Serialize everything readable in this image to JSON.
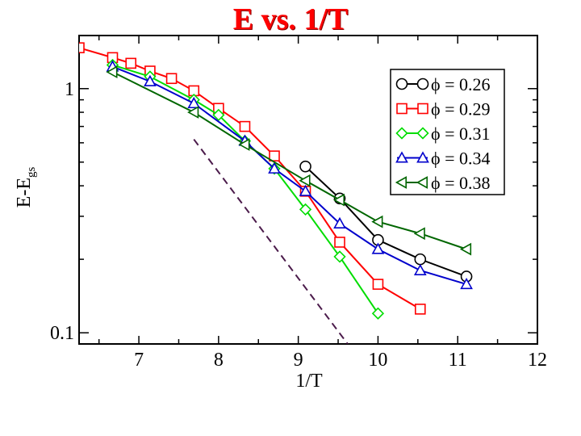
{
  "chart_data": {
    "type": "line",
    "title": "E vs. 1/T",
    "xlabel": "1/T",
    "ylabel": {
      "base": "E-E",
      "sub": "gs"
    },
    "xscale": "linear",
    "yscale": "log",
    "xlim": [
      6.25,
      12
    ],
    "ylim": [
      0.09,
      1.65
    ],
    "xticks": [
      7,
      8,
      9,
      10,
      11,
      12
    ],
    "yticks": [
      {
        "value": 0.1,
        "label": "0.1"
      },
      {
        "value": 1,
        "label": "1"
      }
    ],
    "legend_position": "top-right",
    "series": [
      {
        "name": "ϕ = 0.26",
        "color": "#000000",
        "marker": "circle",
        "x": [
          9.09,
          9.52,
          10.0,
          10.53,
          11.11
        ],
        "y": [
          0.48,
          0.355,
          0.24,
          0.2,
          0.17
        ]
      },
      {
        "name": "ϕ = 0.29",
        "color": "#ff0000",
        "marker": "square",
        "x": [
          6.25,
          6.67,
          6.9,
          7.14,
          7.41,
          7.69,
          8.0,
          8.33,
          8.7,
          9.09,
          9.52,
          10.0,
          10.53
        ],
        "y": [
          1.47,
          1.34,
          1.27,
          1.18,
          1.1,
          0.98,
          0.83,
          0.7,
          0.53,
          0.38,
          0.235,
          0.158,
          0.125
        ]
      },
      {
        "name": "ϕ = 0.31",
        "color": "#00dd00",
        "marker": "diamond",
        "x": [
          6.67,
          7.14,
          7.69,
          8.0,
          8.33,
          8.7,
          9.09,
          9.52,
          10.0
        ],
        "y": [
          1.25,
          1.12,
          0.9,
          0.78,
          0.61,
          0.47,
          0.32,
          0.205,
          0.12
        ]
      },
      {
        "name": "ϕ = 0.34",
        "color": "#0000cc",
        "marker": "triangle-up",
        "x": [
          6.67,
          7.14,
          7.69,
          8.33,
          8.7,
          9.09,
          9.52,
          10.0,
          10.53,
          11.11
        ],
        "y": [
          1.23,
          1.07,
          0.87,
          0.61,
          0.47,
          0.38,
          0.28,
          0.22,
          0.18,
          0.158
        ]
      },
      {
        "name": "ϕ = 0.38",
        "color": "#006600",
        "marker": "triangle-left",
        "x": [
          6.67,
          7.69,
          8.33,
          9.09,
          9.52,
          10.0,
          10.53,
          11.11
        ],
        "y": [
          1.17,
          0.8,
          0.59,
          0.42,
          0.35,
          0.285,
          0.255,
          0.22
        ]
      }
    ],
    "reference_line": {
      "color": "#4b1b4b",
      "style": "dashed",
      "x": [
        7.69,
        9.62
      ],
      "y": [
        0.62,
        0.09
      ]
    }
  }
}
